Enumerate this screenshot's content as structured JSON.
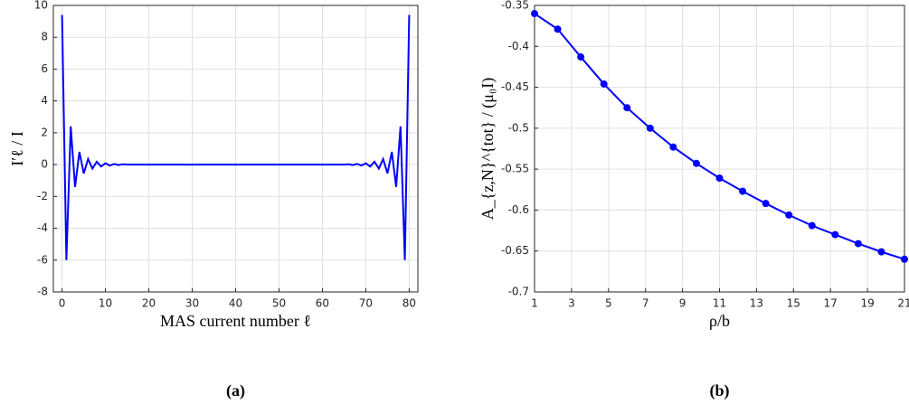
{
  "chart_data": [
    {
      "type": "line",
      "caption": "(a)",
      "xlabel": "MAS current number ℓ",
      "ylabel": "I′ℓ / I",
      "x": [
        0,
        1,
        2,
        3,
        4,
        5,
        6,
        7,
        8,
        9,
        10,
        11,
        12,
        13,
        14,
        15,
        16,
        17,
        18,
        19,
        20,
        21,
        22,
        23,
        24,
        25,
        26,
        27,
        28,
        29,
        30,
        31,
        32,
        33,
        34,
        35,
        36,
        37,
        38,
        39,
        40,
        41,
        42,
        43,
        44,
        45,
        46,
        47,
        48,
        49,
        50,
        51,
        52,
        53,
        54,
        55,
        56,
        57,
        58,
        59,
        60,
        61,
        62,
        63,
        64,
        65,
        66,
        67,
        68,
        69,
        70,
        71,
        72,
        73,
        74,
        75,
        76,
        77,
        78,
        79,
        80
      ],
      "series": [
        {
          "color": "#0000ff",
          "values": [
            9.4,
            -6,
            2.4,
            -1.4,
            0.8,
            -0.55,
            0.35,
            -0.25,
            0.18,
            -0.12,
            0.08,
            -0.06,
            0.04,
            -0.03,
            0.02,
            0,
            0,
            0,
            0,
            0,
            0,
            0,
            0,
            0,
            0,
            0,
            0,
            0,
            0,
            0,
            0,
            0,
            0,
            0,
            0,
            0,
            0,
            0,
            0,
            0,
            0,
            0,
            0,
            0,
            0,
            0,
            0,
            0,
            0,
            0,
            0,
            0,
            0,
            0,
            0,
            0,
            0,
            0,
            0,
            0,
            0,
            0,
            0,
            0,
            0,
            0,
            0.02,
            -0.03,
            0.04,
            -0.06,
            0.08,
            -0.12,
            0.18,
            -0.25,
            0.35,
            -0.55,
            0.8,
            -1.4,
            2.4,
            -6,
            9.4
          ]
        }
      ],
      "xlim": [
        -2,
        82
      ],
      "xticks": [
        0,
        10,
        20,
        30,
        40,
        50,
        60,
        70,
        80
      ],
      "ylim": [
        -8,
        10
      ],
      "yticks": [
        -8,
        -6,
        -4,
        -2,
        0,
        2,
        4,
        6,
        8,
        10
      ],
      "grid": true,
      "markers": false
    },
    {
      "type": "line",
      "caption": "(b)",
      "xlabel": "ρ/b",
      "ylabel": "A_{z,N}^{tot} / (μ₀I)",
      "x": [
        1,
        2.25,
        3.5,
        4.75,
        6,
        7.25,
        8.5,
        9.75,
        11,
        12.25,
        13.5,
        14.75,
        16,
        17.25,
        18.5,
        19.75,
        21
      ],
      "series": [
        {
          "color": "#0000ff",
          "values": [
            -0.36,
            -0.379,
            -0.413,
            -0.446,
            -0.475,
            -0.5,
            -0.523,
            -0.543,
            -0.561,
            -0.577,
            -0.592,
            -0.606,
            -0.619,
            -0.63,
            -0.641,
            -0.651,
            -0.66
          ]
        }
      ],
      "xlim": [
        1,
        21
      ],
      "xticks": [
        1,
        3,
        5,
        7,
        9,
        11,
        13,
        15,
        17,
        19,
        21
      ],
      "ylim": [
        -0.7,
        -0.35
      ],
      "yticks": [
        -0.7,
        -0.65,
        -0.6,
        -0.55,
        -0.5,
        -0.45,
        -0.4,
        -0.35
      ],
      "grid": true,
      "markers": true
    }
  ]
}
